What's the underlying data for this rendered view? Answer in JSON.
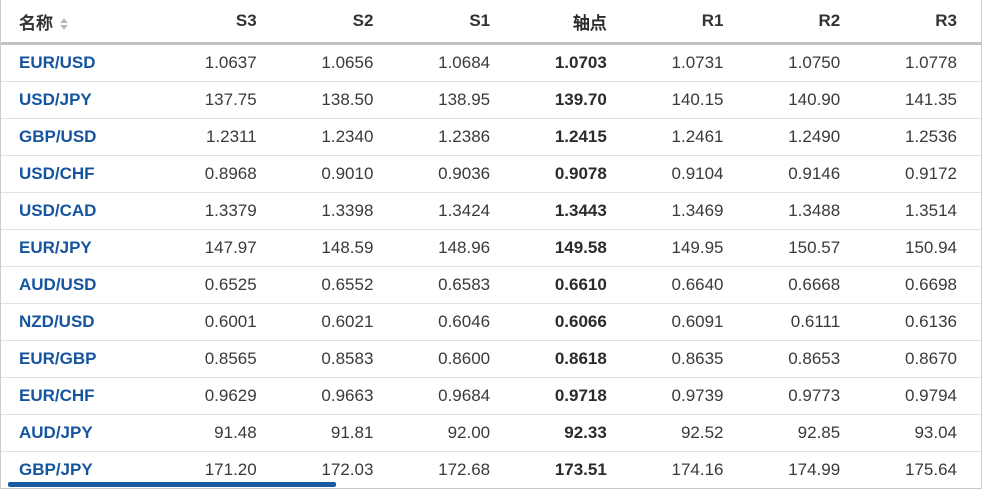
{
  "header": {
    "columns": [
      {
        "key": "name",
        "label": "名称"
      },
      {
        "key": "s3",
        "label": "S3"
      },
      {
        "key": "s2",
        "label": "S2"
      },
      {
        "key": "s1",
        "label": "S1"
      },
      {
        "key": "pivot",
        "label": "轴点"
      },
      {
        "key": "r1",
        "label": "R1"
      },
      {
        "key": "r2",
        "label": "R2"
      },
      {
        "key": "r3",
        "label": "R3"
      }
    ]
  },
  "rows": [
    {
      "name": "EUR/USD",
      "s3": "1.0637",
      "s2": "1.0656",
      "s1": "1.0684",
      "pivot": "1.0703",
      "r1": "1.0731",
      "r2": "1.0750",
      "r3": "1.0778"
    },
    {
      "name": "USD/JPY",
      "s3": "137.75",
      "s2": "138.50",
      "s1": "138.95",
      "pivot": "139.70",
      "r1": "140.15",
      "r2": "140.90",
      "r3": "141.35"
    },
    {
      "name": "GBP/USD",
      "s3": "1.2311",
      "s2": "1.2340",
      "s1": "1.2386",
      "pivot": "1.2415",
      "r1": "1.2461",
      "r2": "1.2490",
      "r3": "1.2536"
    },
    {
      "name": "USD/CHF",
      "s3": "0.8968",
      "s2": "0.9010",
      "s1": "0.9036",
      "pivot": "0.9078",
      "r1": "0.9104",
      "r2": "0.9146",
      "r3": "0.9172"
    },
    {
      "name": "USD/CAD",
      "s3": "1.3379",
      "s2": "1.3398",
      "s1": "1.3424",
      "pivot": "1.3443",
      "r1": "1.3469",
      "r2": "1.3488",
      "r3": "1.3514"
    },
    {
      "name": "EUR/JPY",
      "s3": "147.97",
      "s2": "148.59",
      "s1": "148.96",
      "pivot": "149.58",
      "r1": "149.95",
      "r2": "150.57",
      "r3": "150.94"
    },
    {
      "name": "AUD/USD",
      "s3": "0.6525",
      "s2": "0.6552",
      "s1": "0.6583",
      "pivot": "0.6610",
      "r1": "0.6640",
      "r2": "0.6668",
      "r3": "0.6698"
    },
    {
      "name": "NZD/USD",
      "s3": "0.6001",
      "s2": "0.6021",
      "s1": "0.6046",
      "pivot": "0.6066",
      "r1": "0.6091",
      "r2": "0.6111",
      "r3": "0.6136"
    },
    {
      "name": "EUR/GBP",
      "s3": "0.8565",
      "s2": "0.8583",
      "s1": "0.8600",
      "pivot": "0.8618",
      "r1": "0.8635",
      "r2": "0.8653",
      "r3": "0.8670"
    },
    {
      "name": "EUR/CHF",
      "s3": "0.9629",
      "s2": "0.9663",
      "s1": "0.9684",
      "pivot": "0.9718",
      "r1": "0.9739",
      "r2": "0.9773",
      "r3": "0.9794"
    },
    {
      "name": "AUD/JPY",
      "s3": "91.48",
      "s2": "91.81",
      "s1": "92.00",
      "pivot": "92.33",
      "r1": "92.52",
      "r2": "92.85",
      "r3": "93.04"
    },
    {
      "name": "GBP/JPY",
      "s3": "171.20",
      "s2": "172.03",
      "s1": "172.68",
      "pivot": "173.51",
      "r1": "174.16",
      "r2": "174.99",
      "r3": "175.64"
    }
  ],
  "icons": {
    "sort": "sort-arrows-icon"
  },
  "colors": {
    "pair_link": "#15549e",
    "scrollbar_thumb": "#1a5ba6",
    "header_border": "#c3c3c3",
    "row_border": "#e2e2e2",
    "outer_border": "#cccccc",
    "header_text": "#333333",
    "cell_text": "#3a3a3a"
  },
  "scrollbar": {
    "orientation": "horizontal",
    "visible": true
  }
}
